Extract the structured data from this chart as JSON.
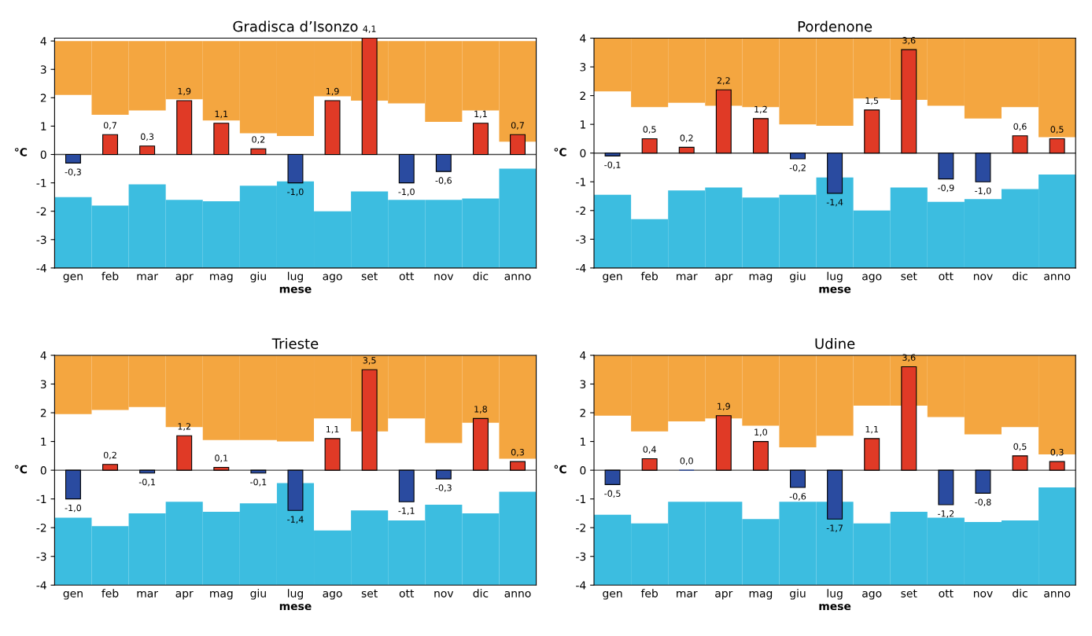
{
  "chart_data": [
    {
      "type": "bar",
      "title": "Gradisca d’Isonzo",
      "xlabel": "mese",
      "ylabel": "°C",
      "categories": [
        "gen",
        "feb",
        "mar",
        "apr",
        "mag",
        "giu",
        "lug",
        "ago",
        "set",
        "ott",
        "nov",
        "dic",
        "anno"
      ],
      "ylim": [
        -4,
        4.1
      ],
      "yticks": [
        -4,
        -3,
        -2,
        -1,
        0,
        1,
        2,
        3,
        4
      ],
      "series": [
        {
          "color": "#f4a640",
          "base": [
            2.1,
            1.4,
            1.55,
            1.95,
            1.2,
            0.75,
            0.65,
            2.05,
            1.9,
            1.8,
            1.15,
            1.55,
            0.45
          ],
          "values": [
            1.9,
            2.6,
            2.45,
            2.05,
            2.8,
            3.25,
            3.35,
            1.95,
            2.1,
            2.2,
            2.85,
            2.45,
            3.55
          ]
        },
        {
          "color": "#3cbde0",
          "base": [
            -4,
            -4,
            -4,
            -4,
            -4,
            -4,
            -4,
            -4,
            -4,
            -4,
            -4,
            -4,
            -4
          ],
          "values": [
            2.5,
            2.2,
            2.95,
            2.4,
            2.35,
            2.9,
            3.05,
            2.0,
            2.7,
            2.4,
            2.4,
            2.45,
            3.5
          ]
        },
        {
          "colors": [
            "#2a4ba0",
            "#e03a26",
            "#e03a26",
            "#e03a26",
            "#e03a26",
            "#e03a26",
            "#2a4ba0",
            "#e03a26",
            "#e03a26",
            "#2a4ba0",
            "#2a4ba0",
            "#e03a26",
            "#e03a26"
          ],
          "values": [
            -0.3,
            0.7,
            0.3,
            1.9,
            1.1,
            0.2,
            -1.0,
            1.9,
            4.1,
            -1.0,
            -0.6,
            1.1,
            0.7
          ],
          "value_labels": [
            "-0,3",
            "0,7",
            "0,3",
            "1,9",
            "1,1",
            "0,2",
            "-1,0",
            "1,9",
            "4,1",
            "-1,0",
            "-0,6",
            "1,1",
            "0,7"
          ]
        }
      ]
    },
    {
      "type": "bar",
      "title": "Pordenone",
      "xlabel": "mese",
      "ylabel": "°C",
      "categories": [
        "gen",
        "feb",
        "mar",
        "apr",
        "mag",
        "giu",
        "lug",
        "ago",
        "set",
        "ott",
        "nov",
        "dic",
        "anno"
      ],
      "ylim": [
        -4,
        4
      ],
      "yticks": [
        -4,
        -3,
        -2,
        -1,
        0,
        1,
        2,
        3,
        4
      ],
      "series": [
        {
          "color": "#f4a640",
          "base": [
            2.15,
            1.6,
            1.75,
            1.65,
            1.6,
            1.0,
            0.95,
            1.9,
            1.85,
            1.65,
            1.2,
            1.6,
            0.55
          ],
          "values": [
            1.85,
            2.4,
            2.25,
            2.35,
            2.4,
            3.0,
            3.05,
            2.1,
            2.15,
            2.35,
            2.8,
            2.4,
            3.45
          ]
        },
        {
          "color": "#3cbde0",
          "base": [
            -4,
            -4,
            -4,
            -4,
            -4,
            -4,
            -4,
            -4,
            -4,
            -4,
            -4,
            -4,
            -4
          ],
          "values": [
            2.55,
            1.7,
            2.7,
            2.8,
            2.45,
            2.55,
            3.15,
            2.0,
            2.8,
            2.3,
            2.4,
            2.75,
            3.25
          ]
        },
        {
          "colors": [
            "#2a4ba0",
            "#e03a26",
            "#e03a26",
            "#e03a26",
            "#e03a26",
            "#2a4ba0",
            "#2a4ba0",
            "#e03a26",
            "#e03a26",
            "#2a4ba0",
            "#2a4ba0",
            "#e03a26",
            "#e03a26"
          ],
          "values": [
            -0.1,
            0.5,
            0.2,
            2.2,
            1.2,
            -0.2,
            -1.4,
            1.5,
            3.6,
            -0.9,
            -1.0,
            0.6,
            0.5
          ],
          "value_labels": [
            "-0,1",
            "0,5",
            "0,2",
            "2,2",
            "1,2",
            "-0,2",
            "-1,4",
            "1,5",
            "3,6",
            "-0,9",
            "-1,0",
            "0,6",
            "0,5"
          ]
        }
      ]
    },
    {
      "type": "bar",
      "title": "Trieste",
      "xlabel": "mese",
      "ylabel": "°C",
      "categories": [
        "gen",
        "feb",
        "mar",
        "apr",
        "mag",
        "giu",
        "lug",
        "ago",
        "set",
        "ott",
        "nov",
        "dic",
        "anno"
      ],
      "ylim": [
        -4,
        4
      ],
      "yticks": [
        -4,
        -3,
        -2,
        -1,
        0,
        1,
        2,
        3,
        4
      ],
      "series": [
        {
          "color": "#f4a640",
          "base": [
            1.95,
            2.1,
            2.2,
            1.5,
            1.05,
            1.05,
            1.0,
            1.8,
            1.35,
            1.8,
            0.95,
            1.65,
            0.4
          ],
          "values": [
            2.05,
            1.9,
            1.8,
            2.5,
            2.95,
            2.95,
            3.0,
            2.2,
            2.65,
            2.2,
            3.05,
            2.35,
            3.6
          ]
        },
        {
          "color": "#3cbde0",
          "base": [
            -4,
            -4,
            -4,
            -4,
            -4,
            -4,
            -4,
            -4,
            -4,
            -4,
            -4,
            -4,
            -4
          ],
          "values": [
            2.35,
            2.05,
            2.5,
            2.9,
            2.55,
            2.85,
            3.55,
            1.9,
            2.6,
            2.25,
            2.8,
            2.5,
            3.25
          ]
        },
        {
          "colors": [
            "#2a4ba0",
            "#e03a26",
            "#2a4ba0",
            "#e03a26",
            "#e03a26",
            "#2a4ba0",
            "#2a4ba0",
            "#e03a26",
            "#e03a26",
            "#2a4ba0",
            "#2a4ba0",
            "#e03a26",
            "#e03a26"
          ],
          "values": [
            -1.0,
            0.2,
            -0.1,
            1.2,
            0.1,
            -0.1,
            -1.4,
            1.1,
            3.5,
            -1.1,
            -0.3,
            1.8,
            0.3
          ],
          "value_labels": [
            "-1,0",
            "0,2",
            "-0,1",
            "1,2",
            "0,1",
            "-0,1",
            "-1,4",
            "1,1",
            "3,5",
            "-1,1",
            "-0,3",
            "1,8",
            "0,3"
          ]
        }
      ]
    },
    {
      "type": "bar",
      "title": "Udine",
      "xlabel": "mese",
      "ylabel": "°C",
      "categories": [
        "gen",
        "feb",
        "mar",
        "apr",
        "mag",
        "giu",
        "lug",
        "ago",
        "set",
        "ott",
        "nov",
        "dic",
        "anno"
      ],
      "ylim": [
        -4,
        4
      ],
      "yticks": [
        -4,
        -3,
        -2,
        -1,
        0,
        1,
        2,
        3,
        4
      ],
      "series": [
        {
          "color": "#f4a640",
          "base": [
            1.9,
            1.35,
            1.7,
            1.8,
            1.55,
            0.8,
            1.2,
            2.25,
            2.25,
            1.85,
            1.25,
            1.5,
            0.55
          ],
          "values": [
            2.1,
            2.65,
            2.3,
            2.2,
            2.45,
            3.2,
            2.8,
            1.75,
            1.75,
            2.15,
            2.75,
            2.5,
            3.45
          ]
        },
        {
          "color": "#3cbde0",
          "base": [
            -4,
            -4,
            -4,
            -4,
            -4,
            -4,
            -4,
            -4,
            -4,
            -4,
            -4,
            -4,
            -4
          ],
          "values": [
            2.45,
            2.15,
            2.9,
            2.9,
            2.3,
            2.9,
            2.9,
            2.15,
            2.55,
            2.35,
            2.2,
            2.25,
            3.4
          ]
        },
        {
          "colors": [
            "#2a4ba0",
            "#e03a26",
            "#2a4ba0",
            "#e03a26",
            "#e03a26",
            "#2a4ba0",
            "#2a4ba0",
            "#e03a26",
            "#e03a26",
            "#2a4ba0",
            "#2a4ba0",
            "#e03a26",
            "#e03a26"
          ],
          "values": [
            -0.5,
            0.4,
            0.0,
            1.9,
            1.0,
            -0.6,
            -1.7,
            1.1,
            3.6,
            -1.2,
            -0.8,
            0.5,
            0.3
          ],
          "value_labels": [
            "-0,5",
            "0,4",
            "0,0",
            "1,9",
            "1,0",
            "-0,6",
            "-1,7",
            "1,1",
            "3,6",
            "-1,2",
            "-0,8",
            "0,5",
            "0,3"
          ]
        }
      ]
    }
  ]
}
